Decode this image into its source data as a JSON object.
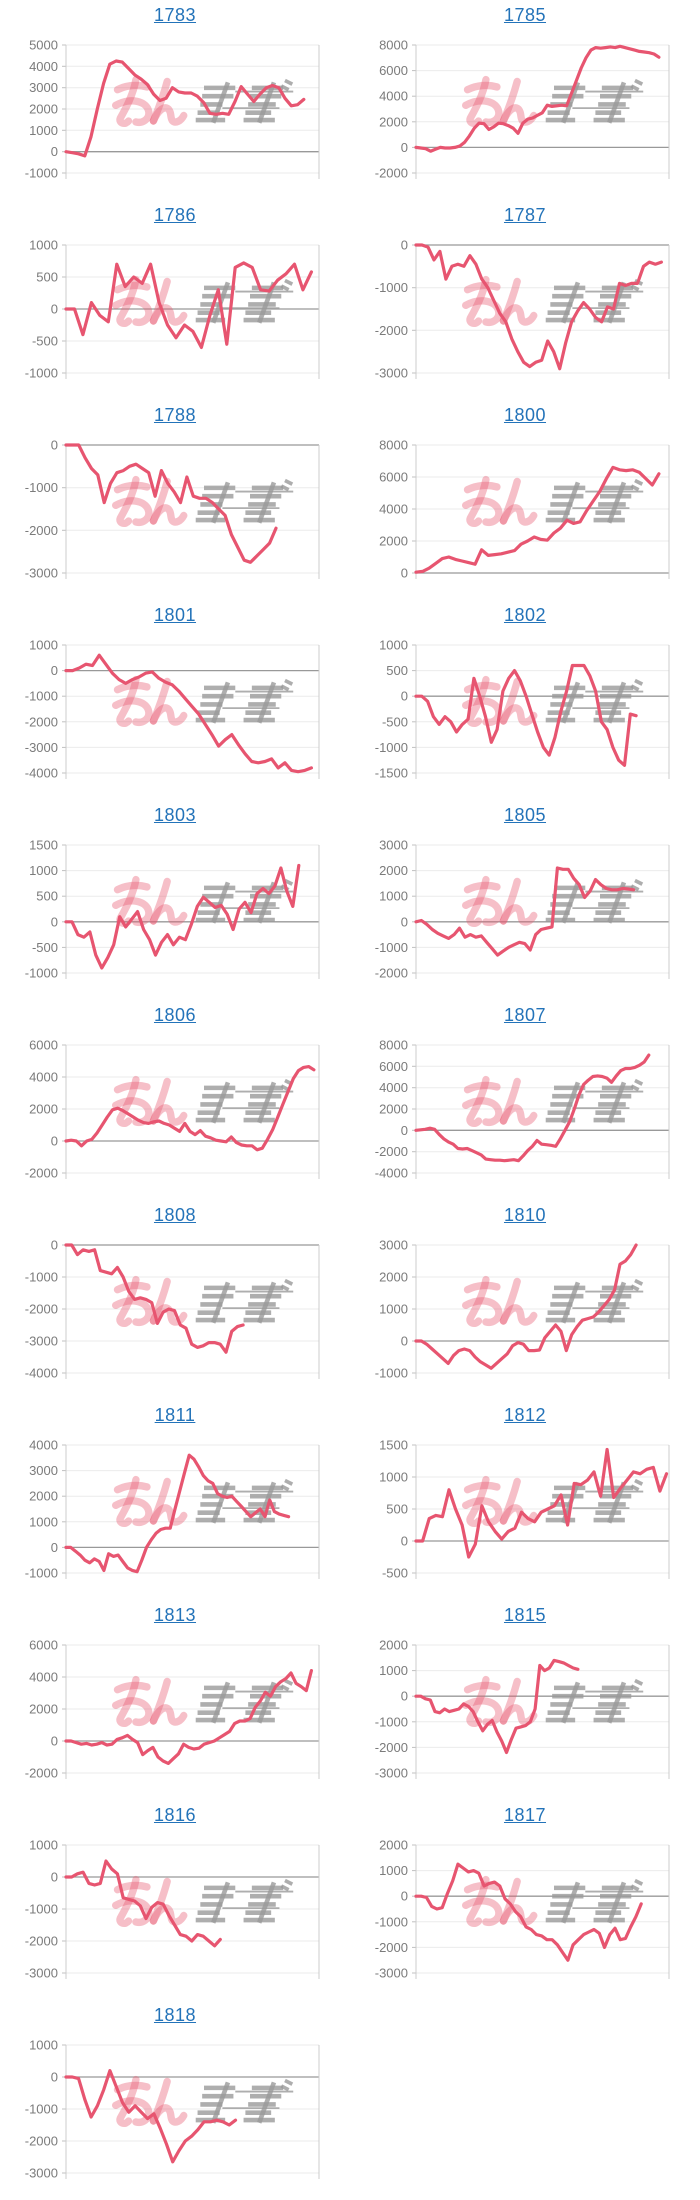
{
  "ui": {
    "watermark": {
      "pink_text": "みん",
      "gray_text": "かぶ",
      "full_text": "みんかぶ"
    },
    "colors": {
      "line": "#e75570",
      "title_link": "#2373b9",
      "tick_label": "#7b7b7b",
      "grid": "#ebebeb",
      "zero_line": "#999999",
      "axis": "#cccccc",
      "tick_mark": "#c0c0c0",
      "watermark_pink": "#e7566f",
      "watermark_gray": "#9a9a9a"
    }
  },
  "chart_data": [
    {
      "type": "line",
      "title": "1783",
      "ylim": [
        -1000,
        5000
      ],
      "yticks": [
        5000,
        4000,
        3000,
        2000,
        1000,
        0,
        -1000
      ],
      "end_frac": 0.94,
      "values": [
        0,
        -50,
        -100,
        -200,
        700,
        2000,
        3200,
        4100,
        4250,
        4200,
        3900,
        3600,
        3400,
        3150,
        2700,
        2400,
        2500,
        3000,
        2800,
        2750,
        2750,
        2600,
        2300,
        1800,
        1750,
        1800,
        1750,
        2350,
        3050,
        2700,
        2350,
        2700,
        3000,
        3100,
        3000,
        2500,
        2150,
        2200,
        2450
      ]
    },
    {
      "type": "line",
      "title": "1785",
      "ylim": [
        -2000,
        8000
      ],
      "yticks": [
        8000,
        6000,
        4000,
        2000,
        0,
        -2000
      ],
      "end_frac": 0.96,
      "values": [
        0,
        -50,
        -100,
        -300,
        -150,
        0,
        -50,
        -50,
        0,
        100,
        400,
        900,
        1500,
        1900,
        1850,
        1400,
        1600,
        1900,
        1850,
        1700,
        1500,
        1100,
        1900,
        2200,
        2300,
        2500,
        2700,
        3300,
        3200,
        3250,
        3300,
        3250,
        4200,
        5200,
        6200,
        7000,
        7600,
        7800,
        7750,
        7800,
        7850,
        7800,
        7900,
        7800,
        7700,
        7600,
        7500,
        7450,
        7400,
        7300,
        7050
      ]
    },
    {
      "type": "line",
      "title": "1786",
      "ylim": [
        -1000,
        1000
      ],
      "yticks": [
        1000,
        500,
        0,
        -500,
        -1000
      ],
      "end_frac": 0.97,
      "values": [
        0,
        0,
        -400,
        100,
        -100,
        -200,
        700,
        350,
        500,
        400,
        700,
        100,
        -250,
        -450,
        -250,
        -350,
        -600,
        -100,
        300,
        -550,
        650,
        720,
        650,
        300,
        280,
        450,
        550,
        700,
        300,
        580
      ]
    },
    {
      "type": "line",
      "title": "1787",
      "ylim": [
        -3000,
        0
      ],
      "yticks": [
        0,
        -1000,
        -2000,
        -3000
      ],
      "end_frac": 0.97,
      "values": [
        0,
        0,
        -50,
        -350,
        -150,
        -800,
        -500,
        -450,
        -500,
        -250,
        -450,
        -800,
        -1000,
        -1300,
        -1600,
        -1800,
        -2200,
        -2500,
        -2750,
        -2850,
        -2750,
        -2700,
        -2250,
        -2500,
        -2900,
        -2300,
        -1800,
        -1550,
        -1350,
        -1500,
        -1700,
        -1800,
        -1450,
        -1500,
        -900,
        -950,
        -900,
        -900,
        -500,
        -400,
        -450,
        -400
      ]
    },
    {
      "type": "line",
      "title": "1788",
      "ylim": [
        -3000,
        0
      ],
      "yticks": [
        0,
        -1000,
        -2000,
        -3000
      ],
      "end_frac": 0.83,
      "values": [
        0,
        0,
        0,
        -300,
        -550,
        -700,
        -1350,
        -900,
        -650,
        -600,
        -500,
        -450,
        -550,
        -650,
        -1200,
        -600,
        -900,
        -1100,
        -1350,
        -750,
        -1200,
        -1250,
        -1250,
        -1350,
        -1500,
        -1650,
        -2100,
        -2400,
        -2700,
        -2750,
        -2600,
        -2450,
        -2300,
        -1950
      ]
    },
    {
      "type": "line",
      "title": "1800",
      "ylim": [
        0,
        8000
      ],
      "yticks": [
        8000,
        6000,
        4000,
        2000,
        0
      ],
      "end_frac": 0.96,
      "values": [
        50,
        100,
        300,
        600,
        900,
        1000,
        850,
        750,
        650,
        550,
        1450,
        1100,
        1150,
        1200,
        1300,
        1400,
        1800,
        2000,
        2250,
        2100,
        2050,
        2500,
        2800,
        3300,
        3100,
        3200,
        3900,
        4500,
        5100,
        5900,
        6600,
        6450,
        6400,
        6450,
        6300,
        5900,
        5500,
        6200
      ]
    },
    {
      "type": "line",
      "title": "1801",
      "ylim": [
        -4000,
        1000
      ],
      "yticks": [
        1000,
        0,
        -1000,
        -2000,
        -3000,
        -4000
      ],
      "end_frac": 0.97,
      "values": [
        0,
        0,
        100,
        250,
        200,
        600,
        250,
        -100,
        -350,
        -500,
        -350,
        -250,
        -100,
        -50,
        -300,
        -450,
        -550,
        -800,
        -1100,
        -1400,
        -1700,
        -2100,
        -2500,
        -2950,
        -2700,
        -2500,
        -2900,
        -3250,
        -3550,
        -3600,
        -3550,
        -3450,
        -3800,
        -3600,
        -3900,
        -3950,
        -3900,
        -3800
      ]
    },
    {
      "type": "line",
      "title": "1802",
      "ylim": [
        -1500,
        1000
      ],
      "yticks": [
        1000,
        500,
        0,
        -500,
        -1000,
        -1500
      ],
      "end_frac": 0.87,
      "values": [
        0,
        0,
        -100,
        -400,
        -550,
        -400,
        -500,
        -700,
        -550,
        -450,
        350,
        0,
        -400,
        -900,
        -650,
        100,
        350,
        500,
        300,
        0,
        -350,
        -700,
        -1000,
        -1150,
        -800,
        -300,
        100,
        600,
        600,
        600,
        400,
        100,
        -500,
        -650,
        -1000,
        -1250,
        -1350,
        -350,
        -380
      ]
    },
    {
      "type": "line",
      "title": "1803",
      "ylim": [
        -1000,
        1500
      ],
      "yticks": [
        1500,
        1000,
        500,
        0,
        -500,
        -1000
      ],
      "end_frac": 0.92,
      "values": [
        0,
        0,
        -250,
        -300,
        -200,
        -650,
        -900,
        -700,
        -450,
        100,
        -100,
        50,
        200,
        -150,
        -350,
        -650,
        -400,
        -250,
        -450,
        -300,
        -350,
        -50,
        300,
        480,
        380,
        280,
        320,
        150,
        -150,
        250,
        380,
        180,
        550,
        650,
        550,
        700,
        1050,
        600,
        300,
        1100
      ]
    },
    {
      "type": "line",
      "title": "1805",
      "ylim": [
        -2000,
        3000
      ],
      "yticks": [
        3000,
        2000,
        1000,
        0,
        -1000,
        -2000
      ],
      "end_frac": 0.86,
      "values": [
        0,
        50,
        -100,
        -300,
        -450,
        -550,
        -650,
        -500,
        -250,
        -600,
        -500,
        -600,
        -550,
        -800,
        -1050,
        -1300,
        -1150,
        -1000,
        -900,
        -800,
        -850,
        -1100,
        -500,
        -300,
        -250,
        -200,
        2100,
        2050,
        2050,
        1700,
        1450,
        950,
        1200,
        1650,
        1450,
        1300,
        1250,
        1250,
        1300,
        1280,
        1250
      ]
    },
    {
      "type": "line",
      "title": "1806",
      "ylim": [
        -2000,
        6000
      ],
      "yticks": [
        6000,
        4000,
        2000,
        0,
        -2000
      ],
      "end_frac": 0.98,
      "values": [
        0,
        50,
        0,
        -300,
        0,
        100,
        500,
        1000,
        1500,
        1950,
        2050,
        1900,
        1700,
        1500,
        1300,
        1150,
        1100,
        1200,
        1250,
        1100,
        1000,
        800,
        600,
        1100,
        600,
        400,
        650,
        300,
        200,
        50,
        0,
        -50,
        250,
        -100,
        -250,
        -300,
        -300,
        -550,
        -450,
        100,
        700,
        1500,
        2300,
        3100,
        3900,
        4400,
        4600,
        4650,
        4450
      ]
    },
    {
      "type": "line",
      "title": "1807",
      "ylim": [
        -4000,
        8000
      ],
      "yticks": [
        8000,
        6000,
        4000,
        2000,
        0,
        -2000,
        -4000
      ],
      "end_frac": 0.92,
      "values": [
        0,
        50,
        100,
        200,
        100,
        -400,
        -800,
        -1100,
        -1300,
        -1700,
        -1750,
        -1700,
        -1900,
        -2100,
        -2300,
        -2700,
        -2750,
        -2800,
        -2800,
        -2850,
        -2800,
        -2750,
        -2850,
        -2400,
        -1900,
        -1500,
        -950,
        -1300,
        -1350,
        -1400,
        -1500,
        -800,
        0,
        800,
        2000,
        3300,
        4300,
        4700,
        5050,
        5100,
        5050,
        4900,
        4500,
        5100,
        5600,
        5800,
        5800,
        5900,
        6100,
        6400,
        7050
      ]
    },
    {
      "type": "line",
      "title": "1808",
      "ylim": [
        -4000,
        0
      ],
      "yticks": [
        0,
        -1000,
        -2000,
        -3000,
        -4000
      ],
      "end_frac": 0.7,
      "values": [
        0,
        0,
        -300,
        -150,
        -200,
        -150,
        -800,
        -850,
        -900,
        -700,
        -1000,
        -1450,
        -1700,
        -1650,
        -1700,
        -1800,
        -2450,
        -2100,
        -2000,
        -2050,
        -2500,
        -2600,
        -3100,
        -3200,
        -3150,
        -3050,
        -3050,
        -3100,
        -3350,
        -2700,
        -2550,
        -2500
      ]
    },
    {
      "type": "line",
      "title": "1810",
      "ylim": [
        -1000,
        3000
      ],
      "yticks": [
        3000,
        2000,
        1000,
        0,
        -1000
      ],
      "end_frac": 0.87,
      "values": [
        0,
        0,
        -100,
        -250,
        -400,
        -550,
        -700,
        -450,
        -300,
        -250,
        -300,
        -500,
        -650,
        -750,
        -850,
        -700,
        -550,
        -400,
        -150,
        -50,
        -100,
        -300,
        -300,
        -280,
        100,
        300,
        500,
        300,
        -300,
        200,
        450,
        650,
        700,
        750,
        900,
        1100,
        1300,
        1600,
        2400,
        2500,
        2700,
        3000
      ]
    },
    {
      "type": "line",
      "title": "1811",
      "ylim": [
        -1000,
        4000
      ],
      "yticks": [
        4000,
        3000,
        2000,
        1000,
        0,
        -1000
      ],
      "end_frac": 0.88,
      "values": [
        0,
        0,
        -150,
        -300,
        -500,
        -600,
        -450,
        -550,
        -900,
        -250,
        -350,
        -300,
        -550,
        -800,
        -900,
        -950,
        -500,
        0,
        300,
        550,
        700,
        750,
        750,
        1500,
        2200,
        2900,
        3600,
        3450,
        3150,
        2800,
        2600,
        2500,
        2100,
        2000,
        1950,
        2000,
        1800,
        1600,
        1400,
        1200,
        1350,
        1500,
        1200,
        1850,
        1400,
        1300,
        1250,
        1200
      ]
    },
    {
      "type": "line",
      "title": "1812",
      "ylim": [
        -500,
        1500
      ],
      "yticks": [
        1500,
        1000,
        500,
        0,
        -500
      ],
      "end_frac": 0.99,
      "values": [
        0,
        0,
        350,
        400,
        380,
        800,
        500,
        250,
        -250,
        -50,
        550,
        300,
        150,
        30,
        150,
        200,
        450,
        350,
        300,
        450,
        500,
        550,
        720,
        250,
        900,
        880,
        950,
        1080,
        700,
        1430,
        680,
        820,
        950,
        1080,
        1050,
        1120,
        1150,
        780,
        1050
      ]
    },
    {
      "type": "line",
      "title": "1813",
      "ylim": [
        -2000,
        6000
      ],
      "yticks": [
        6000,
        4000,
        2000,
        0,
        -2000
      ],
      "end_frac": 0.97,
      "values": [
        0,
        0,
        -100,
        -200,
        -150,
        -250,
        -200,
        -100,
        -250,
        -200,
        100,
        200,
        350,
        100,
        -100,
        -850,
        -600,
        -400,
        -1000,
        -1250,
        -1400,
        -1100,
        -800,
        -200,
        -400,
        -500,
        -450,
        -200,
        -100,
        0,
        200,
        400,
        600,
        1100,
        1250,
        1250,
        1400,
        2100,
        2500,
        3050,
        2800,
        3400,
        3700,
        3900,
        4250,
        3600,
        3400,
        3150,
        4400
      ]
    },
    {
      "type": "line",
      "title": "1815",
      "ylim": [
        -3000,
        2000
      ],
      "yticks": [
        2000,
        1000,
        0,
        -1000,
        -2000,
        -3000
      ],
      "end_frac": 0.64,
      "values": [
        0,
        0,
        -100,
        -150,
        -600,
        -650,
        -500,
        -600,
        -550,
        -500,
        -300,
        -400,
        -600,
        -1000,
        -1350,
        -1100,
        -950,
        -1400,
        -1750,
        -2200,
        -1700,
        -1250,
        -1200,
        -1150,
        -1000,
        -500,
        1200,
        1000,
        1100,
        1400,
        1350,
        1300,
        1200,
        1100,
        1050
      ]
    },
    {
      "type": "line",
      "title": "1816",
      "ylim": [
        -3000,
        1000
      ],
      "yticks": [
        1000,
        0,
        -1000,
        -2000,
        -3000
      ],
      "end_frac": 0.61,
      "values": [
        0,
        0,
        100,
        150,
        -200,
        -250,
        -200,
        500,
        250,
        100,
        -650,
        -700,
        -750,
        -900,
        -1300,
        -950,
        -800,
        -850,
        -1200,
        -1500,
        -1800,
        -1850,
        -2000,
        -1800,
        -1850,
        -2000,
        -2150,
        -1950
      ]
    },
    {
      "type": "line",
      "title": "1817",
      "ylim": [
        -3000,
        2000
      ],
      "yticks": [
        2000,
        1000,
        0,
        -1000,
        -2000,
        -3000
      ],
      "end_frac": 0.89,
      "values": [
        0,
        0,
        -50,
        -400,
        -500,
        -450,
        100,
        600,
        1250,
        1100,
        950,
        1000,
        900,
        400,
        500,
        550,
        400,
        -100,
        -300,
        -600,
        -800,
        -1200,
        -1300,
        -1500,
        -1550,
        -1700,
        -1700,
        -1900,
        -2200,
        -2500,
        -1900,
        -1700,
        -1500,
        -1400,
        -1300,
        -1450,
        -2000,
        -1500,
        -1250,
        -1700,
        -1650,
        -1200,
        -800,
        -300
      ]
    },
    {
      "type": "line",
      "title": "1818",
      "ylim": [
        -3000,
        1000
      ],
      "yticks": [
        1000,
        0,
        -1000,
        -2000,
        -3000
      ],
      "end_frac": 0.67,
      "values": [
        0,
        0,
        -50,
        -700,
        -1250,
        -900,
        -400,
        200,
        -300,
        -800,
        -1100,
        -900,
        -1100,
        -1300,
        -1150,
        -1600,
        -2100,
        -2650,
        -2300,
        -2000,
        -1850,
        -1650,
        -1400,
        -1400,
        -1350,
        -1400,
        -1500,
        -1350
      ]
    }
  ]
}
